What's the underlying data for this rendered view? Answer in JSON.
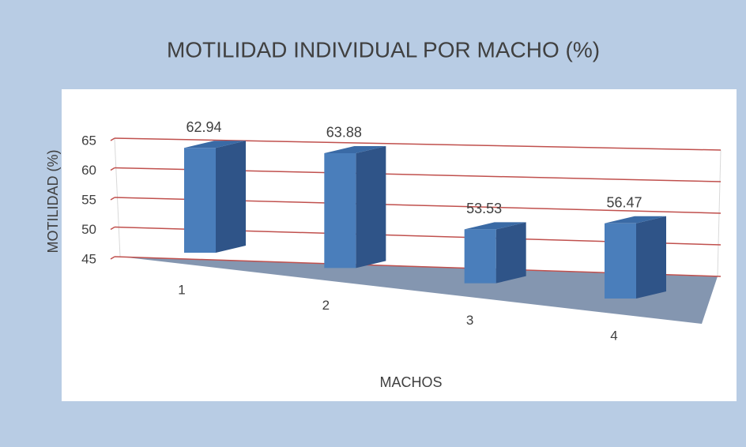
{
  "chart_data": {
    "type": "bar3d",
    "title": "MOTILIDAD INDIVIDUAL POR MACHO (%)",
    "y_label": "MOTILIDAD (%)",
    "x_label": "MACHOS",
    "categories": [
      "1",
      "2",
      "3",
      "4"
    ],
    "values": [
      62.94,
      63.88,
      53.53,
      56.47
    ],
    "color": "#4a7ebb",
    "grid_color": "#c0504d",
    "floor_color": "#8496b0",
    "ylim": [
      45,
      65
    ],
    "yticks": [
      45,
      50,
      55,
      60,
      65
    ],
    "grid": true
  }
}
